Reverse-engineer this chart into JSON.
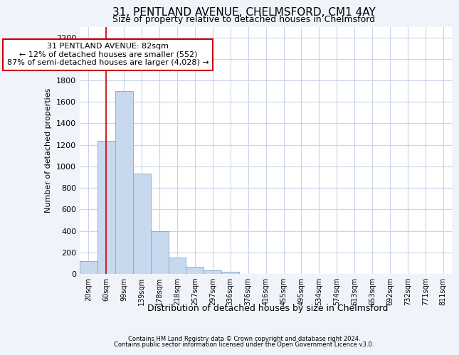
{
  "title": "31, PENTLAND AVENUE, CHELMSFORD, CM1 4AY",
  "subtitle": "Size of property relative to detached houses in Chelmsford",
  "xlabel": "Distribution of detached houses by size in Chelmsford",
  "ylabel": "Number of detached properties",
  "bar_color": "#c8d8ee",
  "bar_edge_color": "#7aaad0",
  "categories": [
    "20sqm",
    "60sqm",
    "99sqm",
    "139sqm",
    "178sqm",
    "218sqm",
    "257sqm",
    "297sqm",
    "336sqm",
    "376sqm",
    "416sqm",
    "455sqm",
    "495sqm",
    "534sqm",
    "574sqm",
    "613sqm",
    "653sqm",
    "692sqm",
    "732sqm",
    "771sqm",
    "811sqm"
  ],
  "values": [
    120,
    1240,
    1700,
    930,
    400,
    150,
    65,
    35,
    20,
    0,
    0,
    0,
    0,
    0,
    0,
    0,
    0,
    0,
    0,
    0,
    0
  ],
  "ylim": [
    0,
    2300
  ],
  "yticks": [
    0,
    200,
    400,
    600,
    800,
    1000,
    1200,
    1400,
    1600,
    1800,
    2000,
    2200
  ],
  "annotation_text": "31 PENTLAND AVENUE: 82sqm\n← 12% of detached houses are smaller (552)\n87% of semi-detached houses are larger (4,028) →",
  "annotation_box_facecolor": "#ffffff",
  "annotation_border_color": "#cc0000",
  "vline_color": "#cc0000",
  "vline_x": 1.0,
  "footer1": "Contains HM Land Registry data © Crown copyright and database right 2024.",
  "footer2": "Contains public sector information licensed under the Open Government Licence v3.0.",
  "background_color": "#f0f4fa",
  "plot_bg_color": "#ffffff",
  "grid_color": "#c8d4e8",
  "title_fontsize": 11,
  "subtitle_fontsize": 9
}
